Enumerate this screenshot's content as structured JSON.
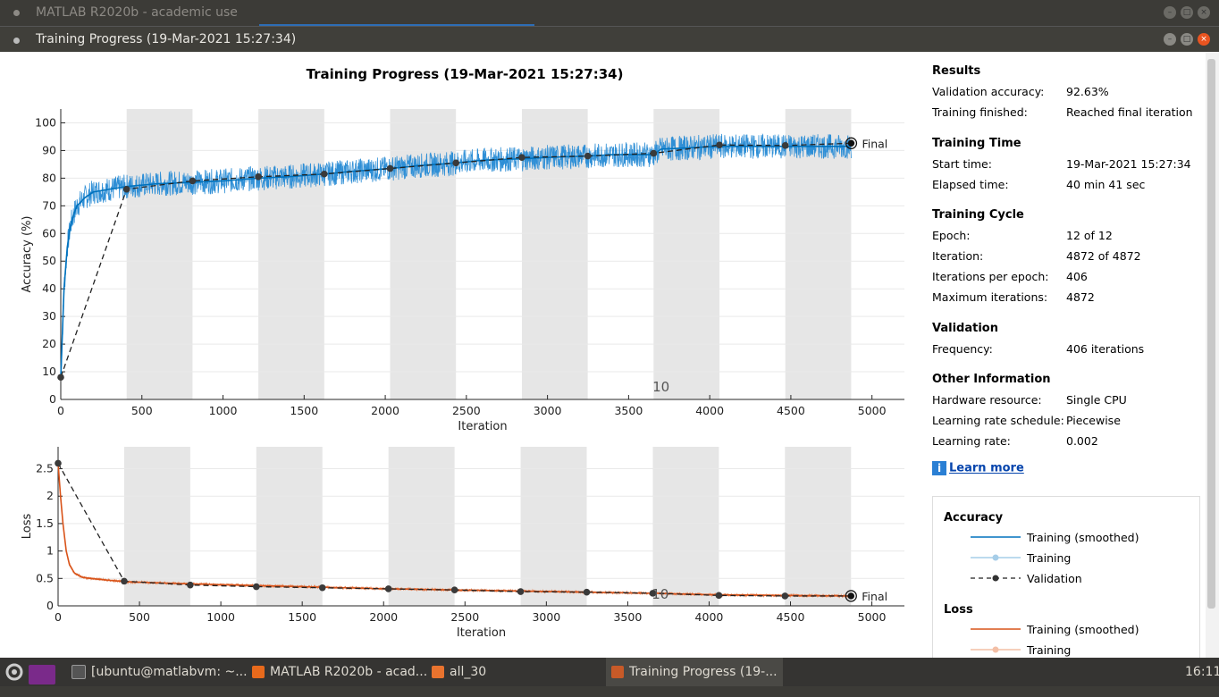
{
  "background_window": {
    "title": "MATLAB R2020b - academic use"
  },
  "window": {
    "title": "Training Progress (19-Mar-2021 15:27:34)",
    "buttons": [
      "minimize-icon",
      "maximize-icon",
      "close-icon"
    ]
  },
  "page": {
    "title": "Training Progress (19-Mar-2021 15:27:34)"
  },
  "chart_data": [
    {
      "type": "line",
      "name": "accuracy",
      "xlabel": "Iteration",
      "ylabel": "Accuracy (%)",
      "xlim": [
        0,
        5200
      ],
      "ylim": [
        0,
        105
      ],
      "xticks": [
        0,
        500,
        1000,
        1500,
        2000,
        2500,
        3000,
        3500,
        4000,
        4500,
        5000
      ],
      "yticks": [
        0,
        10,
        20,
        30,
        40,
        50,
        60,
        70,
        80,
        90,
        100
      ],
      "epoch_iterations": 406,
      "epochs": 12,
      "epoch_annotation": "10",
      "final_label": "Final",
      "series": [
        {
          "name": "Training (smoothed)",
          "color": "#0072bd",
          "x": [
            0,
            20,
            40,
            60,
            80,
            100,
            150,
            200,
            300,
            406,
            600,
            812,
            1000,
            1218,
            1400,
            1624,
            1800,
            2030,
            2200,
            2436,
            2600,
            2842,
            3000,
            3248,
            3400,
            3654,
            3700,
            4060,
            4200,
            4466,
            4700,
            4872
          ],
          "y": [
            8,
            40,
            55,
            63,
            67,
            70,
            73,
            75,
            76,
            77,
            78,
            78.5,
            79,
            80,
            80.5,
            81.5,
            82.5,
            83.5,
            84.5,
            85.5,
            86.5,
            87,
            87.5,
            88,
            88.5,
            88.5,
            90.5,
            91.5,
            91.5,
            91.5,
            91.5,
            91.5
          ]
        },
        {
          "name": "Validation",
          "color": "#222222",
          "x": [
            0,
            406,
            812,
            1218,
            1624,
            2030,
            2436,
            2842,
            3248,
            3654,
            4060,
            4466,
            4872
          ],
          "y": [
            8,
            76,
            79,
            80.5,
            81.5,
            83.5,
            85.5,
            87.5,
            88,
            89,
            92,
            91.8,
            92.63
          ]
        }
      ]
    },
    {
      "type": "line",
      "name": "loss",
      "xlabel": "Iteration",
      "ylabel": "Loss",
      "xlim": [
        0,
        5200
      ],
      "ylim": [
        0,
        2.9
      ],
      "xticks": [
        0,
        500,
        1000,
        1500,
        2000,
        2500,
        3000,
        3500,
        4000,
        4500,
        5000
      ],
      "yticks": [
        0,
        0.5,
        1,
        1.5,
        2,
        2.5
      ],
      "epoch_annotation": "10",
      "final_label": "Final",
      "series": [
        {
          "name": "Training (smoothed)",
          "color": "#d95319",
          "x": [
            0,
            15,
            30,
            50,
            70,
            100,
            150,
            200,
            300,
            406,
            812,
            1218,
            1624,
            2030,
            2436,
            2842,
            3248,
            3654,
            4060,
            4466,
            4872
          ],
          "y": [
            2.6,
            2.0,
            1.5,
            1.0,
            0.75,
            0.6,
            0.52,
            0.5,
            0.47,
            0.44,
            0.4,
            0.37,
            0.34,
            0.31,
            0.29,
            0.27,
            0.25,
            0.23,
            0.2,
            0.19,
            0.18
          ]
        },
        {
          "name": "Validation",
          "color": "#222222",
          "x": [
            0,
            406,
            812,
            1218,
            1624,
            2030,
            2436,
            2842,
            3248,
            3654,
            4060,
            4466,
            4872
          ],
          "y": [
            2.6,
            0.45,
            0.38,
            0.35,
            0.33,
            0.31,
            0.29,
            0.26,
            0.25,
            0.23,
            0.19,
            0.18,
            0.18
          ]
        }
      ]
    }
  ],
  "results": {
    "heading": "Results",
    "validation_accuracy_label": "Validation accuracy:",
    "validation_accuracy": "92.63%",
    "training_finished_label": "Training finished:",
    "training_finished": "Reached final iteration"
  },
  "training_time": {
    "heading": "Training Time",
    "start_label": "Start time:",
    "start": "19-Mar-2021 15:27:34",
    "elapsed_label": "Elapsed time:",
    "elapsed": "40 min 41 sec"
  },
  "training_cycle": {
    "heading": "Training Cycle",
    "epoch_label": "Epoch:",
    "epoch": "12 of 12",
    "iteration_label": "Iteration:",
    "iteration": "4872 of 4872",
    "ipe_label": "Iterations per epoch:",
    "ipe": "406",
    "max_label": "Maximum iterations:",
    "max": "4872"
  },
  "validation": {
    "heading": "Validation",
    "frequency_label": "Frequency:",
    "frequency": "406 iterations"
  },
  "other": {
    "heading": "Other Information",
    "hw_label": "Hardware resource:",
    "hw": "Single CPU",
    "lrs_label": "Learning rate schedule:",
    "lrs": "Piecewise",
    "lr_label": "Learning rate:",
    "lr": "0.002"
  },
  "learn_more": "Learn more",
  "legend": {
    "accuracy_heading": "Accuracy",
    "loss_heading": "Loss",
    "acc_items": [
      "Training (smoothed)",
      "Training",
      "Validation"
    ],
    "loss_items": [
      "Training (smoothed)",
      "Training"
    ]
  },
  "taskbar": {
    "items": [
      "[ubuntu@matlabvm: ~...",
      "MATLAB R2020b - acad...",
      "all_30",
      "Training Progress (19-..."
    ],
    "clock": "16:11"
  }
}
